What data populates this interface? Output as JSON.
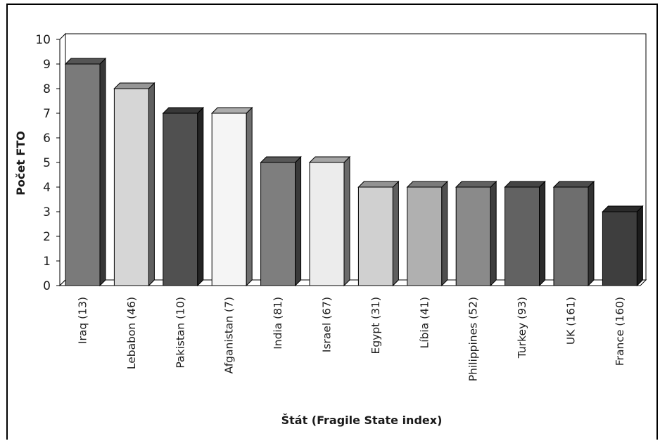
{
  "chart_data": {
    "type": "bar",
    "title": "",
    "xlabel": "Štát (Fragile State index)",
    "ylabel": "Počet FTO",
    "ylim": [
      0,
      10
    ],
    "yticks": [
      "0",
      "1",
      "2",
      "3",
      "4",
      "5",
      "6",
      "7",
      "8",
      "9",
      "10"
    ],
    "categories": [
      "Iraq (13)",
      "Lebabon (46)",
      "Pakistan (10)",
      "Afganistan (7)",
      "India (81)",
      "Israel (67)",
      "Egypt (31)",
      "Líbia (41)",
      "Philippines (52)",
      "Turkey (93)",
      "UK (161)",
      "France (160)"
    ],
    "values": [
      9,
      8,
      7,
      7,
      5,
      5,
      4,
      4,
      4,
      4,
      4,
      3
    ],
    "bar_colors": [
      "#7a7a7a",
      "#d6d6d6",
      "#505050",
      "#f5f5f5",
      "#7e7e7e",
      "#ececec",
      "#d0d0d0",
      "#b0b0b0",
      "#8a8a8a",
      "#626262",
      "#6e6e6e",
      "#3e3e3e"
    ],
    "grid": false,
    "legend": "none"
  }
}
